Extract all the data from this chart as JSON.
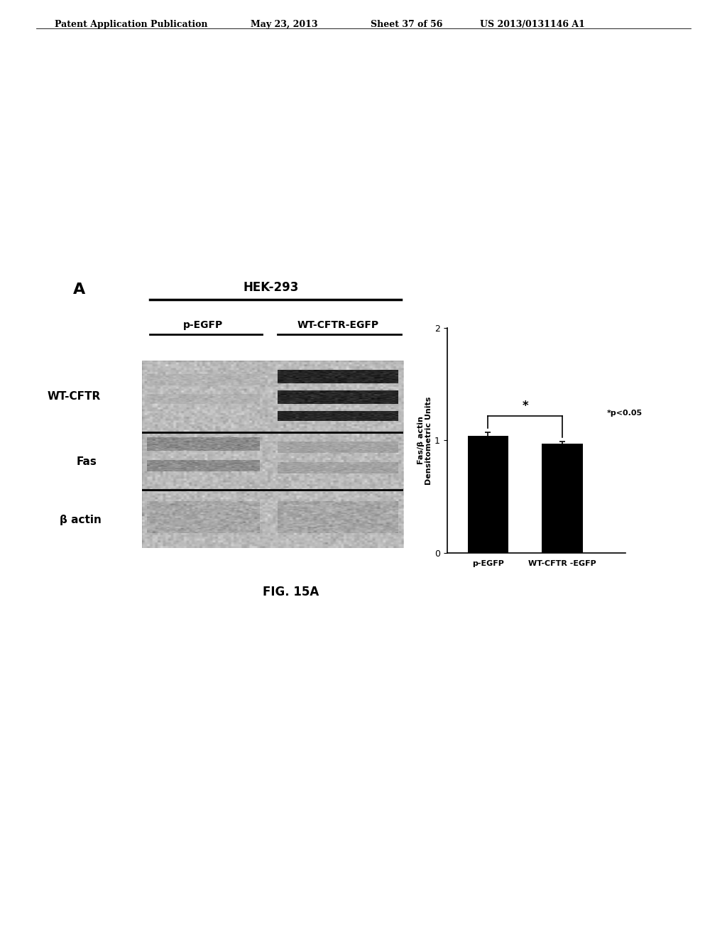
{
  "title_header": "Patent Application Publication",
  "header_date": "May 23, 2013",
  "header_sheet": "Sheet 37 of 56",
  "header_patent": "US 2013/0131146 A1",
  "fig_label": "A",
  "blot_title": "HEK-293",
  "col1_label": "p-EGFP",
  "col2_label": "WT-CFTR-EGFP",
  "row_labels": [
    "WT-CFTR",
    "Fas",
    "β actin"
  ],
  "bar_categories": [
    "p-EGFP",
    "WT-CFTR -EGFP"
  ],
  "bar_values": [
    1.04,
    0.97
  ],
  "bar_errors": [
    0.03,
    0.02
  ],
  "bar_color": "#000000",
  "ylabel": "Fas/β actin\nDensitometric Units",
  "ylim": [
    0,
    2
  ],
  "yticks": [
    0,
    1,
    2
  ],
  "significance_label": "*",
  "significance_note": "*p<0.05",
  "fig_caption": "FIG. 15A",
  "background_color": "#ffffff",
  "blot_bg_color": "#bbbbbb",
  "header_fontsize": 9,
  "fig_caption_fontsize": 12
}
